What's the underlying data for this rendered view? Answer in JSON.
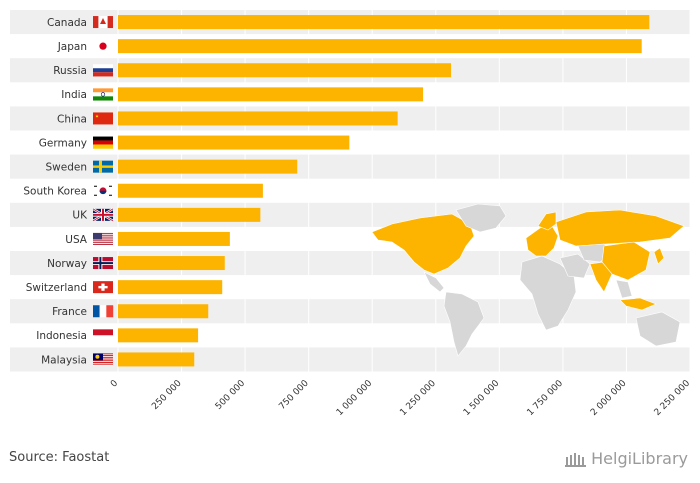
{
  "chart_data": {
    "type": "bar",
    "orientation": "horizontal",
    "categories": [
      "Canada",
      "Japan",
      "Russia",
      "India",
      "China",
      "Germany",
      "Sweden",
      "South Korea",
      "UK",
      "USA",
      "Norway",
      "Switzerland",
      "France",
      "Indonesia",
      "Malaysia"
    ],
    "values": [
      2090000,
      2060000,
      1310000,
      1200000,
      1100000,
      910000,
      705000,
      570000,
      560000,
      440000,
      420000,
      410000,
      355000,
      315000,
      300000
    ],
    "flags": [
      "canada-flag",
      "japan-flag",
      "russia-flag",
      "india-flag",
      "china-flag",
      "germany-flag",
      "sweden-flag",
      "south-korea-flag",
      "uk-flag",
      "usa-flag",
      "norway-flag",
      "switzerland-flag",
      "france-flag",
      "indonesia-flag",
      "malaysia-flag"
    ],
    "xlim": [
      0,
      2250000
    ],
    "xticks": [
      0,
      250000,
      500000,
      750000,
      1000000,
      1250000,
      1500000,
      1750000,
      2000000,
      2250000
    ],
    "xtick_labels": [
      "0",
      "250 000",
      "500 000",
      "750 000",
      "1 000 000",
      "1 250 000",
      "1 500 000",
      "1 750 000",
      "2 000 000",
      "2 250 000"
    ],
    "grid": true,
    "bar_color": "#FDB400",
    "band_color": "#EFEFEF",
    "map_highlight_color": "#FDB400",
    "map_base_color": "#D7D7D7",
    "title": "",
    "xlabel": "",
    "ylabel": ""
  },
  "footer": {
    "source": "Source: Faostat",
    "brand": "HelgiLibrary"
  }
}
